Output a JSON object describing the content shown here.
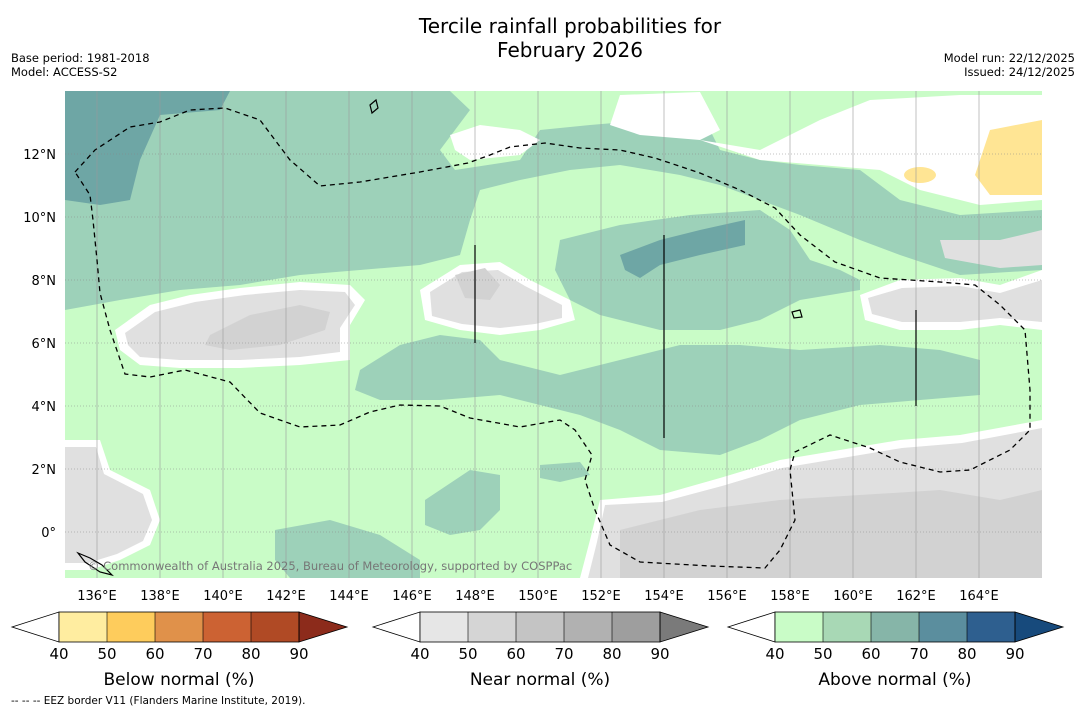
{
  "header": {
    "title_line1": "Tercile rainfall probabilities for",
    "title_line2": "February 2026",
    "base_period": "Base period: 1981-2018",
    "model": "Model: ACCESS-S2",
    "model_run": "Model run: 22/12/2025",
    "issued": "Issued: 24/12/2025"
  },
  "map": {
    "lat_labels": [
      "12°N",
      "10°N",
      "8°N",
      "6°N",
      "4°N",
      "2°N",
      "0°"
    ],
    "lon_labels": [
      "136°E",
      "138°E",
      "140°E",
      "142°E",
      "144°E",
      "146°E",
      "148°E",
      "150°E",
      "152°E",
      "154°E",
      "156°E",
      "158°E",
      "160°E",
      "162°E",
      "164°E"
    ],
    "copyright": "© Commonwealth of Australia 2025, Bureau of Meteorology, supported by COSPPac",
    "colors": {
      "above_light": "#c9fcc7",
      "above_mid": "#9dd1b9",
      "above_dark": "#6ea6a5",
      "near_light": "#e0e0e0",
      "near_mid": "#d2d2d2",
      "below_light": "#ffe594"
    }
  },
  "colorbars": [
    {
      "label": "Below normal (%)",
      "ticks": [
        "40",
        "50",
        "60",
        "70",
        "80",
        "90"
      ],
      "colors": [
        "#ffffff",
        "#ffeda0",
        "#fecc5c",
        "#e0914a",
        "#cc6233",
        "#b04a25",
        "#8c2b1b"
      ]
    },
    {
      "label": "Near normal (%)",
      "ticks": [
        "40",
        "50",
        "60",
        "70",
        "80",
        "90"
      ],
      "colors": [
        "#ffffff",
        "#e6e6e6",
        "#d5d5d5",
        "#c4c4c4",
        "#b1b1b1",
        "#9e9e9e",
        "#7a7a7a"
      ]
    },
    {
      "label": "Above normal (%)",
      "ticks": [
        "40",
        "50",
        "60",
        "70",
        "80",
        "90"
      ],
      "colors": [
        "#ffffff",
        "#c9fcc7",
        "#a8d8b5",
        "#86b5a8",
        "#5b8e9e",
        "#2e5f8f",
        "#174a7c"
      ]
    }
  ],
  "footer": {
    "eez_note": "--  --  -- EEZ border V11 (Flanders Marine Institute, 2019)."
  }
}
